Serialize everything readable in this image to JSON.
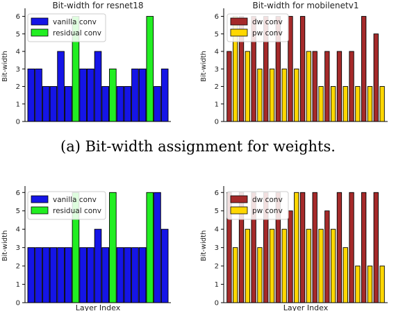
{
  "caption": "(a) Bit-width assignment for weights.",
  "chart_data": [
    {
      "type": "bar",
      "title": "Bit-width for resnet18",
      "xlabel": "",
      "ylabel": "Bit-width",
      "ylim": [
        0,
        6.3
      ],
      "yticks": [
        0,
        1,
        2,
        3,
        4,
        5,
        6
      ],
      "grid": false,
      "legend_position": "top-left",
      "legend": [
        {
          "name": "vanilla conv",
          "color": "#1515e6"
        },
        {
          "name": "residual conv",
          "color": "#22ee22"
        }
      ],
      "bars": [
        {
          "v": 3,
          "s": 0
        },
        {
          "v": 3,
          "s": 0
        },
        {
          "v": 2,
          "s": 0
        },
        {
          "v": 2,
          "s": 0
        },
        {
          "v": 4,
          "s": 0
        },
        {
          "v": 2,
          "s": 0
        },
        {
          "v": 6,
          "s": 1
        },
        {
          "v": 3,
          "s": 0
        },
        {
          "v": 3,
          "s": 0
        },
        {
          "v": 4,
          "s": 0
        },
        {
          "v": 2,
          "s": 0
        },
        {
          "v": 3,
          "s": 1
        },
        {
          "v": 2,
          "s": 0
        },
        {
          "v": 2,
          "s": 0
        },
        {
          "v": 3,
          "s": 0
        },
        {
          "v": 3,
          "s": 0
        },
        {
          "v": 6,
          "s": 1
        },
        {
          "v": 2,
          "s": 0
        },
        {
          "v": 3,
          "s": 0
        }
      ]
    },
    {
      "type": "bar",
      "title": "Bit-width for mobilenetv1",
      "xlabel": "",
      "ylabel": "Bit-width",
      "ylim": [
        0,
        6.3
      ],
      "yticks": [
        0,
        1,
        2,
        3,
        4,
        5,
        6
      ],
      "grid": false,
      "legend_position": "top-left",
      "legend": [
        {
          "name": "dw conv",
          "color": "#a52a2a"
        },
        {
          "name": "pw conv",
          "color": "#ffd700"
        }
      ],
      "bars": [
        {
          "v": 4,
          "s": 0
        },
        {
          "v": 6,
          "s": 1
        },
        {
          "v": 6,
          "s": 0
        },
        {
          "v": 4,
          "s": 1
        },
        {
          "v": 6,
          "s": 0
        },
        {
          "v": 3,
          "s": 1
        },
        {
          "v": 6,
          "s": 0
        },
        {
          "v": 3,
          "s": 1
        },
        {
          "v": 6,
          "s": 0
        },
        {
          "v": 3,
          "s": 1
        },
        {
          "v": 6,
          "s": 0
        },
        {
          "v": 3,
          "s": 1
        },
        {
          "v": 6,
          "s": 0
        },
        {
          "v": 4,
          "s": 1
        },
        {
          "v": 4,
          "s": 0
        },
        {
          "v": 2,
          "s": 1
        },
        {
          "v": 4,
          "s": 0
        },
        {
          "v": 2,
          "s": 1
        },
        {
          "v": 4,
          "s": 0
        },
        {
          "v": 2,
          "s": 1
        },
        {
          "v": 4,
          "s": 0
        },
        {
          "v": 2,
          "s": 1
        },
        {
          "v": 6,
          "s": 0
        },
        {
          "v": 2,
          "s": 1
        },
        {
          "v": 5,
          "s": 0
        },
        {
          "v": 2,
          "s": 1
        }
      ]
    },
    {
      "type": "bar",
      "title": "",
      "xlabel": "Layer Index",
      "ylabel": "Bit-width",
      "ylim": [
        0,
        6.2
      ],
      "yticks": [
        0,
        1,
        2,
        3,
        4,
        5,
        6
      ],
      "grid": false,
      "legend_position": "top-left",
      "legend": [
        {
          "name": "vanilla conv",
          "color": "#1515e6"
        },
        {
          "name": "residual conv",
          "color": "#22ee22"
        }
      ],
      "bars": [
        {
          "v": 3,
          "s": 0
        },
        {
          "v": 3,
          "s": 0
        },
        {
          "v": 3,
          "s": 0
        },
        {
          "v": 3,
          "s": 0
        },
        {
          "v": 3,
          "s": 0
        },
        {
          "v": 3,
          "s": 0
        },
        {
          "v": 6,
          "s": 1
        },
        {
          "v": 3,
          "s": 0
        },
        {
          "v": 3,
          "s": 0
        },
        {
          "v": 4,
          "s": 0
        },
        {
          "v": 3,
          "s": 0
        },
        {
          "v": 6,
          "s": 1
        },
        {
          "v": 3,
          "s": 0
        },
        {
          "v": 3,
          "s": 0
        },
        {
          "v": 3,
          "s": 0
        },
        {
          "v": 3,
          "s": 0
        },
        {
          "v": 6,
          "s": 1
        },
        {
          "v": 6,
          "s": 0
        },
        {
          "v": 4,
          "s": 0
        }
      ]
    },
    {
      "type": "bar",
      "title": "",
      "xlabel": "Layer Index",
      "ylabel": "Bit-width",
      "ylim": [
        0,
        6.2
      ],
      "yticks": [
        0,
        1,
        2,
        3,
        4,
        5,
        6
      ],
      "grid": false,
      "legend_position": "top-left",
      "legend": [
        {
          "name": "dw conv",
          "color": "#a52a2a"
        },
        {
          "name": "pw conv",
          "color": "#ffd700"
        }
      ],
      "bars": [
        {
          "v": 6,
          "s": 0
        },
        {
          "v": 3,
          "s": 1
        },
        {
          "v": 6,
          "s": 0
        },
        {
          "v": 4,
          "s": 1
        },
        {
          "v": 6,
          "s": 0
        },
        {
          "v": 3,
          "s": 1
        },
        {
          "v": 6,
          "s": 0
        },
        {
          "v": 4,
          "s": 1
        },
        {
          "v": 6,
          "s": 0
        },
        {
          "v": 4,
          "s": 1
        },
        {
          "v": 5,
          "s": 0
        },
        {
          "v": 6,
          "s": 1
        },
        {
          "v": 6,
          "s": 0
        },
        {
          "v": 4,
          "s": 1
        },
        {
          "v": 6,
          "s": 0
        },
        {
          "v": 4,
          "s": 1
        },
        {
          "v": 5,
          "s": 0
        },
        {
          "v": 4,
          "s": 1
        },
        {
          "v": 6,
          "s": 0
        },
        {
          "v": 3,
          "s": 1
        },
        {
          "v": 6,
          "s": 0
        },
        {
          "v": 2,
          "s": 1
        },
        {
          "v": 6,
          "s": 0
        },
        {
          "v": 2,
          "s": 1
        },
        {
          "v": 6,
          "s": 0
        },
        {
          "v": 2,
          "s": 1
        }
      ]
    }
  ]
}
